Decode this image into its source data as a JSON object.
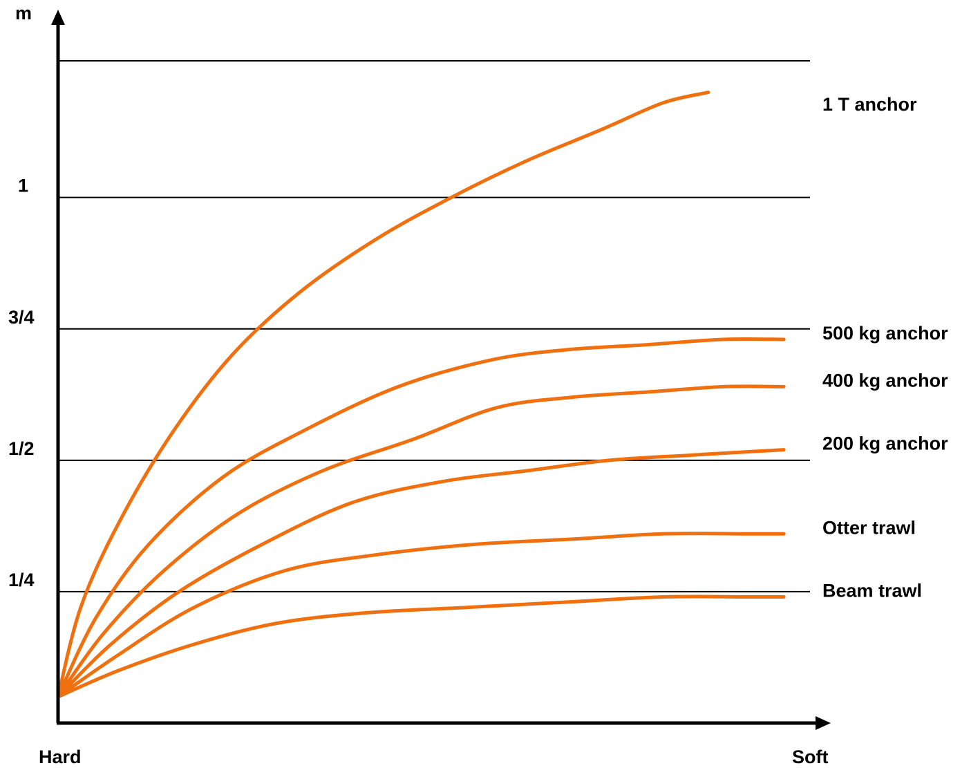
{
  "chart_data": {
    "type": "line",
    "ylabel": "m",
    "xlabel_left": "Hard",
    "xlabel_right": "Soft",
    "ylim": [
      0,
      1.5
    ],
    "xlim": [
      0,
      1.0
    ],
    "y_ticks": [
      {
        "value": 0.25,
        "label": "1/4"
      },
      {
        "value": 0.5,
        "label": "1/2"
      },
      {
        "value": 0.75,
        "label": "3/4"
      },
      {
        "value": 1.0,
        "label": "1"
      }
    ],
    "gridlines_y": [
      0.25,
      0.5,
      0.75,
      1.0,
      1.26
    ],
    "line_color": "#f07010",
    "series": [
      {
        "name": "1 T anchor",
        "x": [
          0,
          0.03,
          0.08,
          0.15,
          0.23,
          0.32,
          0.42,
          0.52,
          0.62,
          0.72,
          0.8,
          0.86
        ],
        "y": [
          0.05,
          0.22,
          0.38,
          0.55,
          0.7,
          0.82,
          0.92,
          1.0,
          1.07,
          1.13,
          1.18,
          1.2
        ]
      },
      {
        "name": "500 kg anchor",
        "x": [
          0,
          0.05,
          0.12,
          0.22,
          0.33,
          0.45,
          0.57,
          0.67,
          0.78,
          0.88,
          0.96
        ],
        "y": [
          0.05,
          0.2,
          0.34,
          0.47,
          0.56,
          0.64,
          0.69,
          0.71,
          0.72,
          0.73,
          0.73
        ]
      },
      {
        "name": "400 kg anchor",
        "x": [
          0,
          0.06,
          0.14,
          0.24,
          0.35,
          0.47,
          0.58,
          0.68,
          0.78,
          0.88,
          0.96
        ],
        "y": [
          0.05,
          0.17,
          0.29,
          0.4,
          0.48,
          0.54,
          0.6,
          0.62,
          0.63,
          0.64,
          0.64
        ]
      },
      {
        "name": "200 kg anchor",
        "x": [
          0,
          0.07,
          0.16,
          0.27,
          0.39,
          0.51,
          0.62,
          0.73,
          0.84,
          0.96
        ],
        "y": [
          0.05,
          0.15,
          0.25,
          0.34,
          0.42,
          0.46,
          0.48,
          0.5,
          0.51,
          0.52
        ]
      },
      {
        "name": "Otter trawl",
        "x": [
          0,
          0.08,
          0.18,
          0.3,
          0.42,
          0.55,
          0.68,
          0.8,
          0.91,
          0.96
        ],
        "y": [
          0.05,
          0.13,
          0.22,
          0.29,
          0.32,
          0.34,
          0.35,
          0.36,
          0.36,
          0.36
        ]
      },
      {
        "name": "Beam trawl",
        "x": [
          0,
          0.08,
          0.18,
          0.29,
          0.41,
          0.54,
          0.67,
          0.8,
          0.91,
          0.96
        ],
        "y": [
          0.05,
          0.1,
          0.15,
          0.19,
          0.21,
          0.22,
          0.23,
          0.24,
          0.24,
          0.24
        ]
      }
    ]
  }
}
